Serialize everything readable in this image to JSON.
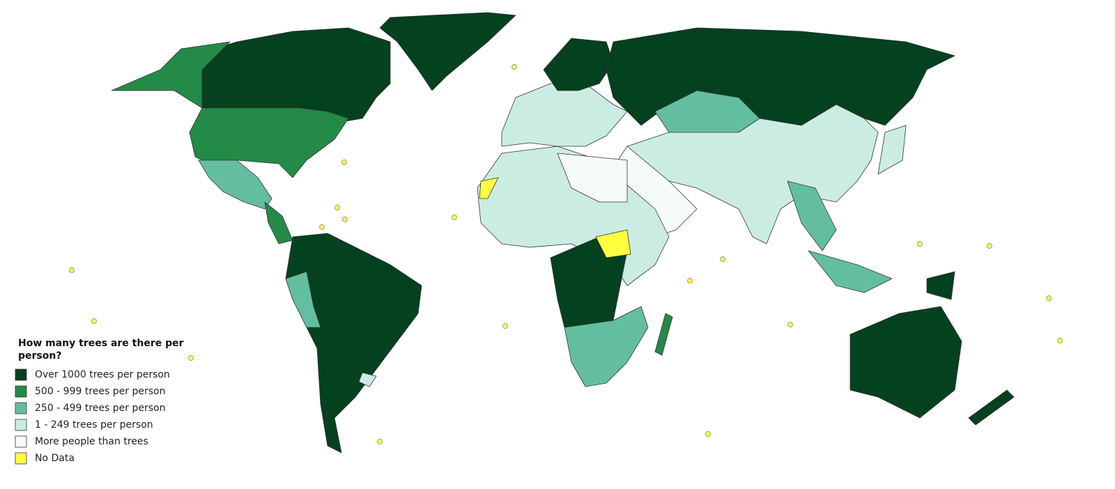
{
  "legend": {
    "title": "How many trees are there per person?",
    "items": [
      {
        "label": "Over 1000 trees per person",
        "color": "#03411f"
      },
      {
        "label": "500 - 999 trees per person",
        "color": "#238a48"
      },
      {
        "label": "250 - 499 trees per person",
        "color": "#63bea0"
      },
      {
        "label": "1 - 249 trees per person",
        "color": "#cbece3"
      },
      {
        "label": "More people than trees",
        "color": "#f5fbfa"
      },
      {
        "label": "No Data",
        "color": "#ffff40"
      }
    ]
  }
}
